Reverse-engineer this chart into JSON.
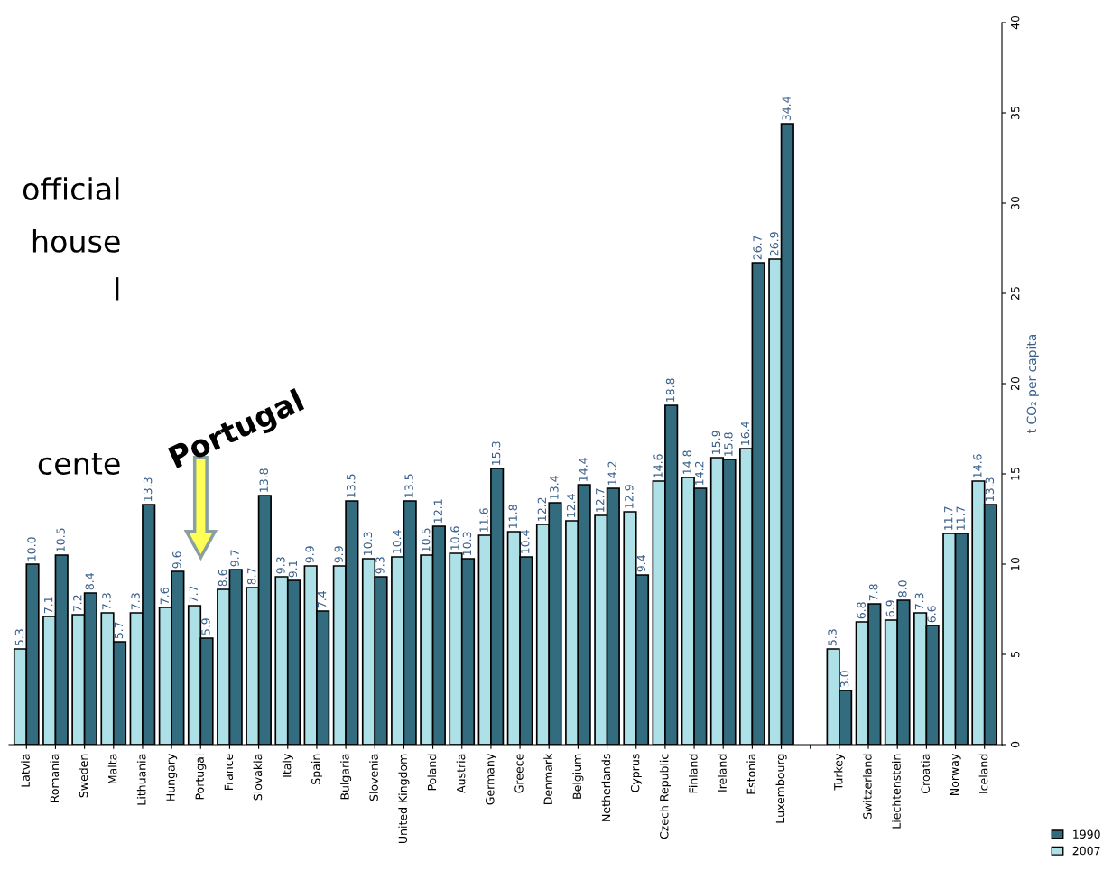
{
  "chart_data": {
    "type": "bar",
    "ylabel": "t CO₂ per capita",
    "categories": [
      "Latvia",
      "Romania",
      "Sweden",
      "Malta",
      "Lithuania",
      "Hungary",
      "Portugal",
      "France",
      "Slovakia",
      "Italy",
      "Spain",
      "Bulgaria",
      "Slovenia",
      "United Kingdom",
      "Poland",
      "Austria",
      "Germany",
      "Greece",
      "Denmark",
      "Belgium",
      "Netherlands",
      "Cyprus",
      "Czech Republic",
      "Finland",
      "Ireland",
      "Estonia",
      "Luxembourg",
      null,
      "Turkey",
      "Switzerland",
      "Liechtenstein",
      "Croatia",
      "Norway",
      "Iceland"
    ],
    "series": [
      {
        "name": "2007",
        "color": "#aee0e8",
        "values": [
          5.3,
          7.1,
          7.2,
          7.3,
          7.3,
          7.6,
          7.7,
          8.6,
          8.7,
          9.3,
          9.9,
          9.9,
          10.3,
          10.4,
          10.5,
          10.6,
          11.6,
          11.8,
          12.2,
          12.4,
          12.7,
          12.9,
          14.6,
          14.8,
          15.9,
          16.4,
          26.9,
          null,
          5.3,
          6.8,
          6.9,
          7.3,
          11.7,
          14.6
        ],
        "value_labels": [
          "5.3",
          "7.1",
          "7.2",
          "7.3",
          "7.3",
          "7.6",
          "7.7",
          "8.6",
          "8.7",
          "9.3",
          "9.9",
          "9.9",
          "10.3",
          "10.4",
          "10.5",
          "10.6",
          "11.6",
          "11.8",
          "12.2",
          "12.4",
          "12.7",
          "12.9",
          "14.6",
          "14.8",
          "15.9",
          "16.4",
          "26.9",
          null,
          "5.3",
          "6.8",
          "6.9",
          "7.3",
          "11.7",
          "14.6"
        ]
      },
      {
        "name": "1990",
        "color": "#336b7f",
        "values": [
          10.0,
          10.5,
          8.4,
          5.7,
          13.3,
          9.6,
          5.9,
          9.7,
          13.8,
          9.1,
          7.4,
          13.5,
          9.3,
          13.5,
          12.1,
          10.3,
          15.3,
          10.4,
          13.4,
          14.4,
          14.2,
          9.4,
          18.8,
          14.2,
          15.8,
          26.7,
          34.4,
          null,
          3.0,
          7.8,
          8.0,
          6.6,
          11.7,
          13.3
        ],
        "value_labels": [
          "10.0",
          "10.5",
          "8.4",
          "5.7",
          "13.3",
          "9.6",
          "5.9",
          "9.7",
          "13.8",
          "9.1",
          "7.4",
          "13.5",
          "9.3",
          "13.5",
          "12.1",
          "10.3",
          "15.3",
          "10.4",
          "13.4",
          "14.4",
          "14.2",
          "9.4",
          "18.8",
          "14.2",
          "15.8",
          "26.7",
          "34.4",
          null,
          "3.0",
          "7.8",
          "8.0",
          "6.6",
          "11.7",
          "13.3"
        ]
      }
    ],
    "ylim": [
      0,
      40
    ],
    "yticks": [
      0,
      5,
      10,
      15,
      20,
      25,
      30,
      35,
      40
    ],
    "legend": "bottom right",
    "annotations": [
      "official",
      "house",
      "l",
      "cente",
      "Portugal"
    ]
  }
}
